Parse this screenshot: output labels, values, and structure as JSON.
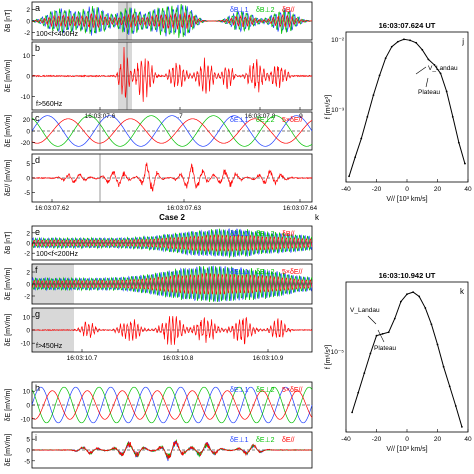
{
  "chart_data": [
    {
      "type": "line",
      "panel": "a",
      "ylabel": "δB [nT]",
      "annotation": "100<f<400Hz",
      "legend": [
        "δB⊥1",
        "δB⊥2",
        "δB//"
      ],
      "yticks": [
        "2",
        "0",
        "-2"
      ],
      "series": [
        {
          "name": "δB⊥1",
          "color": "#1f3fff"
        },
        {
          "name": "δB⊥2",
          "color": "#00c000"
        },
        {
          "name": "δB//",
          "color": "#ff0000"
        }
      ]
    },
    {
      "type": "line",
      "panel": "b",
      "ylabel": "δE [mV/m]",
      "annotation": "f>560Hz",
      "yticks": [
        "10",
        "0",
        "-10"
      ],
      "xticks": [
        "16:03:07.6",
        ".7",
        "16:03:07.8",
        ".9"
      ],
      "series": [
        {
          "name": "δE",
          "color": "#ff0000"
        }
      ]
    },
    {
      "type": "line",
      "panel": "c",
      "ylabel": "δE [mV/m]",
      "legend": [
        "δE⊥1",
        "δE⊥2",
        "5×δE//"
      ],
      "yticks": [
        "20",
        "0",
        "-20"
      ],
      "series": [
        {
          "name": "δE⊥1",
          "color": "#1f3fff"
        },
        {
          "name": "δE⊥2",
          "color": "#00c000"
        },
        {
          "name": "5×δE//",
          "color": "#ff0000"
        }
      ]
    },
    {
      "type": "line",
      "panel": "d",
      "ylabel": "δE// [mV/m]",
      "yticks": [
        "5",
        "0",
        "-5"
      ],
      "xticks": [
        "16:03:07.62",
        "16:03:07.63",
        "16:03:07.64"
      ],
      "series": [
        {
          "name": "δE//",
          "color": "#ff0000"
        }
      ]
    },
    {
      "type": "line",
      "panel": "e",
      "title": "Case 2",
      "ylabel": "δB [nT]",
      "annotation": "100<f<200Hz",
      "legend": [
        "δB⊥1",
        "δB⊥2",
        "δB//"
      ],
      "yticks": [
        "2",
        "0",
        "-2"
      ],
      "series": [
        {
          "name": "δB⊥1",
          "color": "#1f3fff"
        },
        {
          "name": "δB⊥2",
          "color": "#00c000"
        },
        {
          "name": "δB//",
          "color": "#ff0000"
        }
      ]
    },
    {
      "type": "line",
      "panel": "f",
      "ylabel": "δE [mV/m]",
      "legend": [
        "δE⊥1",
        "δE⊥2",
        "5×δE//"
      ],
      "yticks": [
        "2",
        "0",
        "-2"
      ],
      "series": [
        {
          "name": "δE⊥1",
          "color": "#1f3fff"
        },
        {
          "name": "δE⊥2",
          "color": "#00c000"
        },
        {
          "name": "5×δE//",
          "color": "#ff0000"
        }
      ]
    },
    {
      "type": "line",
      "panel": "g",
      "ylabel": "δE [mV/m]",
      "annotation": "f>450Hz",
      "yticks": [
        "10",
        "0",
        "-10"
      ],
      "xticks": [
        "16:03:10.7",
        "16:03:10.8",
        "16:03:10.9"
      ],
      "series": [
        {
          "name": "δE",
          "color": "#ff0000"
        }
      ]
    },
    {
      "type": "line",
      "panel": "h",
      "ylabel": "δE [mV/m]",
      "legend": [
        "δE⊥1",
        "δE⊥2",
        "5×δE//"
      ],
      "yticks": [
        "10",
        "0",
        "-10"
      ],
      "series": [
        {
          "name": "δE⊥1",
          "color": "#1f3fff"
        },
        {
          "name": "δE⊥2",
          "color": "#00c000"
        },
        {
          "name": "5×δE//",
          "color": "#ff0000"
        }
      ]
    },
    {
      "type": "line",
      "panel": "i",
      "ylabel": "δE [mV/m]",
      "legend": [
        "δE⊥1",
        "δE⊥2",
        "δE//"
      ],
      "yticks": [
        "5",
        "0",
        "-5"
      ],
      "series": [
        {
          "name": "δE⊥1",
          "color": "#1f3fff"
        },
        {
          "name": "δE⊥2",
          "color": "#00c000"
        },
        {
          "name": "δE//",
          "color": "#ff0000"
        }
      ]
    },
    {
      "type": "line",
      "panel": "j",
      "title": "16:03:07.624 UT",
      "xlabel": "V// [10³ km/s]",
      "ylabel": "f [m⁶/s³]",
      "log_y": true,
      "xlim": [
        -40,
        40
      ],
      "xticks": [
        "-40",
        "-20",
        "0",
        "20",
        "40"
      ],
      "yticks": [
        "10⁻²",
        "10⁻³"
      ],
      "annotations": [
        "V_Landau",
        "Plateau"
      ],
      "x": [
        -38,
        -34,
        -30,
        -26,
        -22,
        -18,
        -14,
        -10,
        -6,
        -2,
        2,
        6,
        10,
        14,
        18,
        22,
        26,
        30,
        34,
        38
      ],
      "y": [
        0.00012,
        0.00022,
        0.0004,
        0.0008,
        0.0016,
        0.003,
        0.0052,
        0.0075,
        0.0088,
        0.0095,
        0.0092,
        0.0085,
        0.0068,
        0.005,
        0.0042,
        0.0032,
        0.0018,
        0.0008,
        0.00035,
        0.00018
      ],
      "series": [
        {
          "name": "f",
          "color": "#000000"
        }
      ]
    },
    {
      "type": "line",
      "panel": "k",
      "title": "16:03:10.942 UT",
      "xlabel": "V// [10³ km/s]",
      "ylabel": "f [m⁶/s³]",
      "log_y": true,
      "xlim": [
        -40,
        40
      ],
      "xticks": [
        "-40",
        "-20",
        "0",
        "20",
        "40"
      ],
      "yticks": [
        "10⁻⁵"
      ],
      "annotations": [
        "V_Landau",
        "Plateau"
      ],
      "x": [
        -36,
        -32,
        -28,
        -24,
        -20,
        -16,
        -12,
        -8,
        -4,
        0,
        4,
        8,
        12,
        16,
        20,
        24,
        28,
        32,
        36
      ],
      "y": [
        2e-07,
        4e-07,
        8e-07,
        1.6e-06,
        3e-06,
        3.2e-06,
        3.4e-06,
        5.5e-06,
        1e-05,
        1.3e-05,
        1.4e-05,
        1.2e-05,
        8e-06,
        4.5e-06,
        2.2e-06,
        1e-06,
        5e-07,
        2.5e-07,
        1.2e-07
      ],
      "series": [
        {
          "name": "f",
          "color": "#000000"
        }
      ]
    }
  ],
  "case_label": "Case 2",
  "extra_labels": {
    "panel_k_letter": "k",
    "panel_j_letter": "j"
  }
}
